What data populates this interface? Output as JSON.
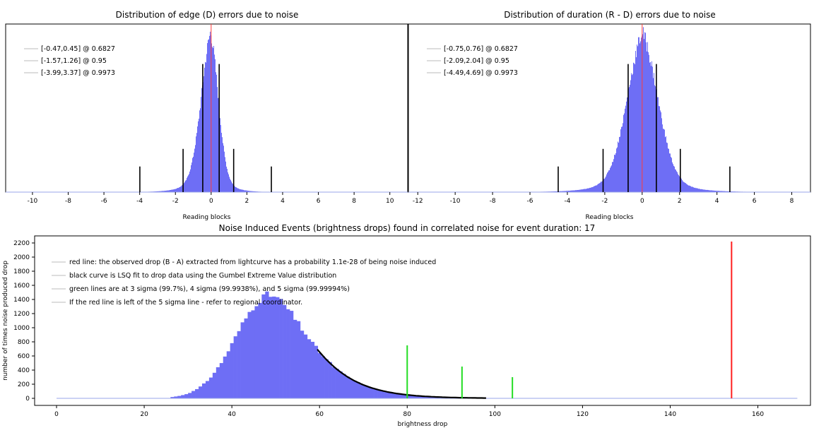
{
  "chart_data": [
    {
      "type": "bar",
      "title": "Distribution of edge (D) errors due to noise",
      "xlabel": "Reading blocks",
      "ylabel": "",
      "xlim": [
        -11.5,
        11.0
      ],
      "ylim": [
        0,
        1.05
      ],
      "xticks": [
        -10,
        -8,
        -6,
        -4,
        -2,
        0,
        2,
        4,
        6,
        8,
        10
      ],
      "grid": false,
      "legend_position": "top-left",
      "legend": [
        "[-0.47,0.45] @ 0.6827",
        "[-1.57,1.26] @ 0.95",
        "[-3.99,3.37] @ 0.9973"
      ],
      "histogram": {
        "center": -0.05,
        "sigma_left": 0.55,
        "sigma_right": 0.45,
        "peak": 1.0,
        "color": "#6e6ef5"
      },
      "confidence_markers": [
        {
          "x": -0.47,
          "height": 0.8
        },
        {
          "x": 0.45,
          "height": 0.8
        },
        {
          "x": -1.57,
          "height": 0.27
        },
        {
          "x": 1.26,
          "height": 0.27
        },
        {
          "x": -3.99,
          "height": 0.16
        },
        {
          "x": 3.37,
          "height": 0.16
        }
      ],
      "reference_line": {
        "x": 0,
        "color": "#ff3b3b"
      }
    },
    {
      "type": "bar",
      "title": "Distribution of duration (R - D) errors due to noise",
      "xlabel": "Reading blocks",
      "ylabel": "",
      "xlim": [
        -12.5,
        9.0
      ],
      "ylim": [
        0,
        1.05
      ],
      "xticks": [
        -12,
        -10,
        -8,
        -6,
        -4,
        -2,
        0,
        2,
        4,
        6,
        8
      ],
      "grid": false,
      "legend_position": "top-left",
      "legend": [
        "[-0.75,0.76] @ 0.6827",
        "[-2.09,2.04] @ 0.95",
        "[-4.49,4.69] @ 0.9973"
      ],
      "histogram": {
        "center": 0.0,
        "sigma_left": 0.85,
        "sigma_right": 0.85,
        "peak": 1.0,
        "color": "#6e6ef5"
      },
      "confidence_markers": [
        {
          "x": -0.75,
          "height": 0.8
        },
        {
          "x": 0.76,
          "height": 0.8
        },
        {
          "x": -2.09,
          "height": 0.27
        },
        {
          "x": 2.04,
          "height": 0.27
        },
        {
          "x": -4.49,
          "height": 0.16
        },
        {
          "x": 4.69,
          "height": 0.16
        }
      ],
      "reference_line": {
        "x": 0,
        "color": "#ff3b3b"
      }
    },
    {
      "type": "bar",
      "title": "Noise Induced Events (brightness drops) found in correlated noise for event duration: 17",
      "xlabel": "brightness drop",
      "ylabel": "number of times noise produced drop",
      "xlim": [
        -5,
        172
      ],
      "ylim": [
        -100,
        2300
      ],
      "xticks": [
        0,
        20,
        40,
        60,
        80,
        100,
        120,
        140,
        160
      ],
      "yticks": [
        0,
        200,
        400,
        600,
        800,
        1000,
        1200,
        1400,
        1600,
        1800,
        2000,
        2200
      ],
      "grid": false,
      "legend_position": "top-left",
      "legend": [
        "red line: the observed drop (B - A) extracted from lightcurve has a probability 1.1e-28 of being noise induced",
        "black curve is LSQ fit to drop data using the Gumbel Extreme Value distribution",
        "green lines are at 3 sigma (99.7%), 4 sigma (99.9938%), and 5 sigma (99.99994%)",
        "If the red line is left of the 5 sigma line - refer to regional coordinator."
      ],
      "histogram": {
        "mode": 48.5,
        "peak": 1460,
        "sigma_left": 7.5,
        "tail_scale": 7.2,
        "bin_width": 0.8,
        "xmin": 26,
        "xmax": 100,
        "color": "#6e6ef5"
      },
      "fit_curve": {
        "x_start": 59.5,
        "x_end": 98,
        "color": "#000000"
      },
      "sigma_lines": [
        {
          "label": "3 sigma",
          "x": 80.0,
          "height": 750,
          "color": "#22dd22"
        },
        {
          "label": "4 sigma",
          "x": 92.5,
          "height": 450,
          "color": "#22dd22"
        },
        {
          "label": "5 sigma",
          "x": 104.0,
          "height": 300,
          "color": "#22dd22"
        }
      ],
      "observed_line": {
        "x": 154.0,
        "height": 2220,
        "color": "#ff2020"
      }
    }
  ]
}
